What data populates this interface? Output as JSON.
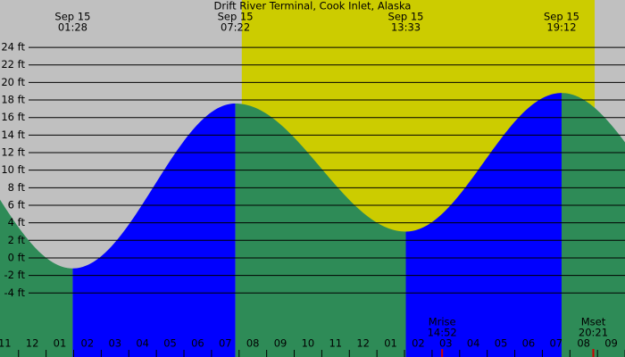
{
  "chart_data": {
    "type": "tide",
    "title": "Drift River Terminal, Cook Inlet, Alaska",
    "events": [
      {
        "date": "Sep 15",
        "time": "01:28",
        "height": -1.2
      },
      {
        "date": "Sep 15",
        "time": "07:22",
        "height": 17.6
      },
      {
        "date": "Sep 15",
        "time": "13:33",
        "height": 3.0
      },
      {
        "date": "Sep 15",
        "time": "19:12",
        "height": 18.8
      }
    ],
    "moon": [
      {
        "label": "Mrise",
        "time": "14:52"
      },
      {
        "label": "Mset",
        "time": "20:21"
      }
    ],
    "daylight_hours": [
      7.6,
      20.4
    ],
    "xlim": [
      -1.17,
      21.5
    ],
    "xticks": [
      {
        "value": -1,
        "label": "11"
      },
      {
        "value": 0,
        "label": "12"
      },
      {
        "value": 1,
        "label": "01"
      },
      {
        "value": 2,
        "label": "02"
      },
      {
        "value": 3,
        "label": "03"
      },
      {
        "value": 4,
        "label": "04"
      },
      {
        "value": 5,
        "label": "05"
      },
      {
        "value": 6,
        "label": "06"
      },
      {
        "value": 7,
        "label": "07"
      },
      {
        "value": 8,
        "label": "08"
      },
      {
        "value": 9,
        "label": "09"
      },
      10,
      11,
      12,
      {
        "value": 13,
        "label": "01"
      },
      {
        "value": 14,
        "label": "02"
      },
      {
        "value": 15,
        "label": "03"
      },
      {
        "value": 16,
        "label": "04"
      },
      {
        "value": 17,
        "label": "05"
      },
      {
        "value": 18,
        "label": "06"
      },
      {
        "value": 19,
        "label": "07"
      },
      {
        "value": 20,
        "label": "08"
      },
      {
        "value": 21,
        "label": "09"
      }
    ],
    "ylim": [
      -11.3,
      29.4
    ],
    "yticks": [
      {
        "value": 24,
        "label": "24 ft"
      },
      {
        "value": 22,
        "label": "22 ft"
      },
      {
        "value": 20,
        "label": "20 ft"
      },
      {
        "value": 18,
        "label": "18 ft"
      },
      {
        "value": 16,
        "label": "16 ft"
      },
      {
        "value": 14,
        "label": "14 ft"
      },
      {
        "value": 12,
        "label": "12 ft"
      },
      {
        "value": 10,
        "label": "10 ft"
      },
      {
        "value": 8,
        "label": "8 ft"
      },
      {
        "value": 6,
        "label": "6 ft"
      },
      {
        "value": 4,
        "label": "4 ft"
      },
      {
        "value": 2,
        "label": "2 ft"
      },
      {
        "value": 0,
        "label": "0 ft"
      },
      {
        "value": -2,
        "label": "-2 ft"
      },
      {
        "value": -4,
        "label": "-4 ft"
      }
    ],
    "colors": {
      "night": "#c0c0c0",
      "day": "#cccc00",
      "rising": "#0000ff",
      "falling": "#2e8b57",
      "moon": "#cc0000",
      "grid": "#000000"
    }
  }
}
